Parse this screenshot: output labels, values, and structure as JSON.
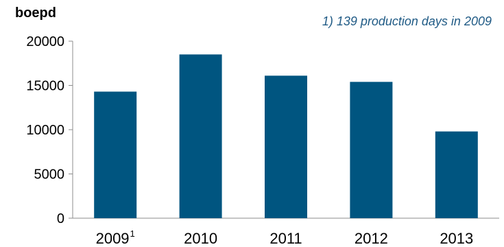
{
  "chart_data": {
    "type": "bar",
    "ylabel": "boepd",
    "annotation": "1) 139 production days in 2009",
    "categories": [
      "2009",
      "2010",
      "2011",
      "2012",
      "2013"
    ],
    "category_superscripts": [
      "1",
      "",
      "",
      "",
      ""
    ],
    "values": [
      14300,
      18500,
      16100,
      15400,
      9800
    ],
    "ylim": [
      0,
      20000
    ],
    "yticks": [
      "0",
      "5000",
      "10000",
      "15000",
      "20000"
    ],
    "grid": false,
    "bar_color": "#005580",
    "axis_color": "#8c8c8c"
  }
}
